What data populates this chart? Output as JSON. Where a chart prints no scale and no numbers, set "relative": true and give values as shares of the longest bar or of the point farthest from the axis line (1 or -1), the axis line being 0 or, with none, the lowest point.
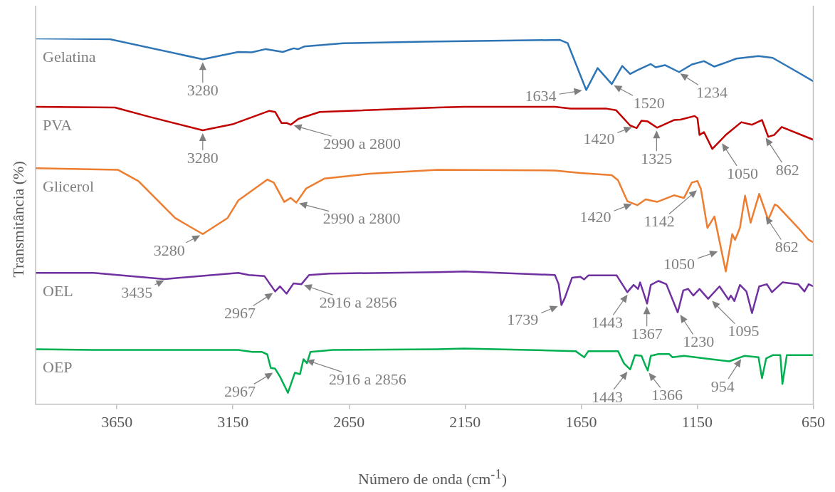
{
  "chart_data": {
    "type": "line",
    "relative": true,
    "xlabel": "Número de onda (cm$^{-1}$)",
    "ylabel": "Transmitância (%)",
    "xlim": [
      4000,
      650
    ],
    "xticks": [
      3650,
      3150,
      2650,
      2150,
      1650,
      1150,
      650
    ],
    "grid": false,
    "series": [
      {
        "name": "Gelatina",
        "color": "#2e75b6",
        "x": [
          4000,
          3680,
          3280,
          3127,
          3069,
          3008,
          2935,
          2889,
          2868,
          2843,
          2675,
          2321,
          1741,
          1708,
          1628,
          1579,
          1518,
          1473,
          1439,
          1405,
          1350,
          1329,
          1289,
          1228,
          1173,
          1121,
          1076,
          1027,
          981,
          886,
          825,
          715,
          650
        ],
        "values": [
          1.0,
          0.998,
          0.943,
          0.963,
          0.962,
          0.971,
          0.963,
          0.973,
          0.971,
          0.978,
          0.987,
          0.991,
          0.996,
          0.987,
          0.859,
          0.919,
          0.875,
          0.925,
          0.903,
          0.914,
          0.93,
          0.921,
          0.927,
          0.908,
          0.929,
          0.938,
          0.923,
          0.934,
          0.945,
          0.952,
          0.947,
          0.907,
          0.883
        ]
      },
      {
        "name": "PVA",
        "color": "#c00000",
        "x": [
          4000,
          3658,
          3512,
          3280,
          3148,
          2993,
          2968,
          2941,
          2919,
          2901,
          2868,
          2776,
          2269,
          2153,
          1763,
          1695,
          1540,
          1500,
          1439,
          1411,
          1390,
          1363,
          1323,
          1250,
          1222,
          1161,
          1149,
          1140,
          1121,
          1085,
          1027,
          960,
          914,
          871,
          844,
          819,
          786,
          650
        ],
        "values": [
          0.813,
          0.811,
          0.786,
          0.749,
          0.766,
          0.802,
          0.799,
          0.769,
          0.769,
          0.764,
          0.78,
          0.799,
          0.811,
          0.813,
          0.813,
          0.808,
          0.808,
          0.804,
          0.762,
          0.755,
          0.775,
          0.773,
          0.756,
          0.777,
          0.778,
          0.788,
          0.782,
          0.736,
          0.744,
          0.698,
          0.736,
          0.771,
          0.764,
          0.777,
          0.731,
          0.736,
          0.758,
          0.723
        ]
      },
      {
        "name": "Glicerol",
        "color": "#ed7d31",
        "x": [
          4000,
          3646,
          3557,
          3399,
          3280,
          3173,
          3127,
          3002,
          2974,
          2929,
          2901,
          2877,
          2834,
          2755,
          2562,
          2269,
          1763,
          1653,
          1518,
          1491,
          1451,
          1408,
          1372,
          1323,
          1250,
          1207,
          1173,
          1149,
          1134,
          1106,
          1076,
          1027,
          999,
          987,
          966,
          944,
          920,
          883,
          844,
          816,
          804,
          715,
          670,
          650
        ],
        "values": [
          0.645,
          0.641,
          0.61,
          0.509,
          0.465,
          0.509,
          0.557,
          0.614,
          0.606,
          0.553,
          0.564,
          0.551,
          0.59,
          0.617,
          0.63,
          0.641,
          0.639,
          0.632,
          0.626,
          0.612,
          0.555,
          0.544,
          0.56,
          0.553,
          0.571,
          0.564,
          0.606,
          0.61,
          0.588,
          0.482,
          0.513,
          0.363,
          0.465,
          0.449,
          0.482,
          0.57,
          0.496,
          0.575,
          0.504,
          0.546,
          0.542,
          0.482,
          0.449,
          0.443
        ]
      },
      {
        "name": "OEL",
        "color": "#7030a0",
        "x": [
          4000,
          3750,
          3444,
          3127,
          3081,
          3014,
          2968,
          2947,
          2919,
          2889,
          2855,
          2822,
          2733,
          2269,
          2153,
          1763,
          1747,
          1735,
          1720,
          1689,
          1653,
          1637,
          1619,
          1497,
          1451,
          1424,
          1405,
          1396,
          1366,
          1350,
          1317,
          1283,
          1234,
          1210,
          1189,
          1167,
          1140,
          1103,
          1054,
          1015,
          1005,
          990,
          966,
          938,
          914,
          883,
          850,
          828,
          783,
          715,
          688,
          670,
          650
        ],
        "values": [
          0.359,
          0.359,
          0.342,
          0.359,
          0.353,
          0.35,
          0.308,
          0.322,
          0.302,
          0.33,
          0.328,
          0.353,
          0.357,
          0.361,
          0.363,
          0.353,
          0.328,
          0.271,
          0.291,
          0.346,
          0.348,
          0.341,
          0.352,
          0.352,
          0.306,
          0.326,
          0.315,
          0.333,
          0.275,
          0.326,
          0.337,
          0.328,
          0.251,
          0.311,
          0.315,
          0.297,
          0.315,
          0.288,
          0.322,
          0.286,
          0.297,
          0.282,
          0.326,
          0.308,
          0.249,
          0.322,
          0.328,
          0.306,
          0.333,
          0.328,
          0.308,
          0.328,
          0.322
        ]
      },
      {
        "name": "OEP",
        "color": "#00b050",
        "x": [
          4000,
          3750,
          3127,
          3066,
          3026,
          3002,
          2987,
          2968,
          2947,
          2913,
          2883,
          2861,
          2846,
          2831,
          2816,
          2721,
          2269,
          2153,
          1674,
          1637,
          1619,
          1491,
          1466,
          1439,
          1418,
          1390,
          1372,
          1363,
          1350,
          1317,
          1271,
          1256,
          1207,
          1115,
          1012,
          947,
          886,
          871,
          853,
          825,
          792,
          783,
          764,
          650
        ],
        "values": [
          0.15,
          0.148,
          0.148,
          0.143,
          0.143,
          0.136,
          0.099,
          0.097,
          0.075,
          0.031,
          0.086,
          0.082,
          0.123,
          0.112,
          0.143,
          0.148,
          0.15,
          0.152,
          0.145,
          0.128,
          0.145,
          0.145,
          0.112,
          0.095,
          0.134,
          0.132,
          0.104,
          0.092,
          0.132,
          0.137,
          0.137,
          0.128,
          0.132,
          0.125,
          0.117,
          0.132,
          0.128,
          0.071,
          0.125,
          0.134,
          0.134,
          0.055,
          0.134,
          0.134
        ]
      }
    ],
    "annotations": [
      {
        "text": "3280",
        "x": 3280,
        "y": 0.943
      },
      {
        "text": "1634",
        "x": 1634,
        "y": 0.859
      },
      {
        "text": "1520",
        "x": 1520,
        "y": 0.875
      },
      {
        "text": "1234",
        "x": 1234,
        "y": 0.908
      },
      {
        "text": "3280",
        "x": 3280,
        "y": 0.749
      },
      {
        "text": "2990 a 2800",
        "x": 2900,
        "y": 0.764
      },
      {
        "text": "1420",
        "x": 1420,
        "y": 0.76
      },
      {
        "text": "1325",
        "x": 1325,
        "y": 0.756
      },
      {
        "text": "1050",
        "x": 1050,
        "y": 0.72
      },
      {
        "text": "862",
        "x": 862,
        "y": 0.735
      },
      {
        "text": "3280",
        "x": 3280,
        "y": 0.465
      },
      {
        "text": "2990 a 2800",
        "x": 2877,
        "y": 0.551
      },
      {
        "text": "1420",
        "x": 1420,
        "y": 0.55
      },
      {
        "text": "1142",
        "x": 1142,
        "y": 0.59
      },
      {
        "text": "1050",
        "x": 1050,
        "y": 0.42
      },
      {
        "text": "862",
        "x": 862,
        "y": 0.52
      },
      {
        "text": "3435",
        "x": 3435,
        "y": 0.342
      },
      {
        "text": "2967",
        "x": 2967,
        "y": 0.308
      },
      {
        "text": "2916 a 2856",
        "x": 2856,
        "y": 0.328
      },
      {
        "text": "1739",
        "x": 1739,
        "y": 0.271
      },
      {
        "text": "1443",
        "x": 1443,
        "y": 0.306
      },
      {
        "text": "1367",
        "x": 1367,
        "y": 0.275
      },
      {
        "text": "1230",
        "x": 1230,
        "y": 0.251
      },
      {
        "text": "1095",
        "x": 1095,
        "y": 0.288
      },
      {
        "text": "2967",
        "x": 2967,
        "y": 0.09
      },
      {
        "text": "2916 a 2856",
        "x": 2846,
        "y": 0.123
      },
      {
        "text": "1443",
        "x": 1443,
        "y": 0.095
      },
      {
        "text": "1366",
        "x": 1366,
        "y": 0.092
      },
      {
        "text": "954",
        "x": 954,
        "y": 0.13
      }
    ]
  }
}
